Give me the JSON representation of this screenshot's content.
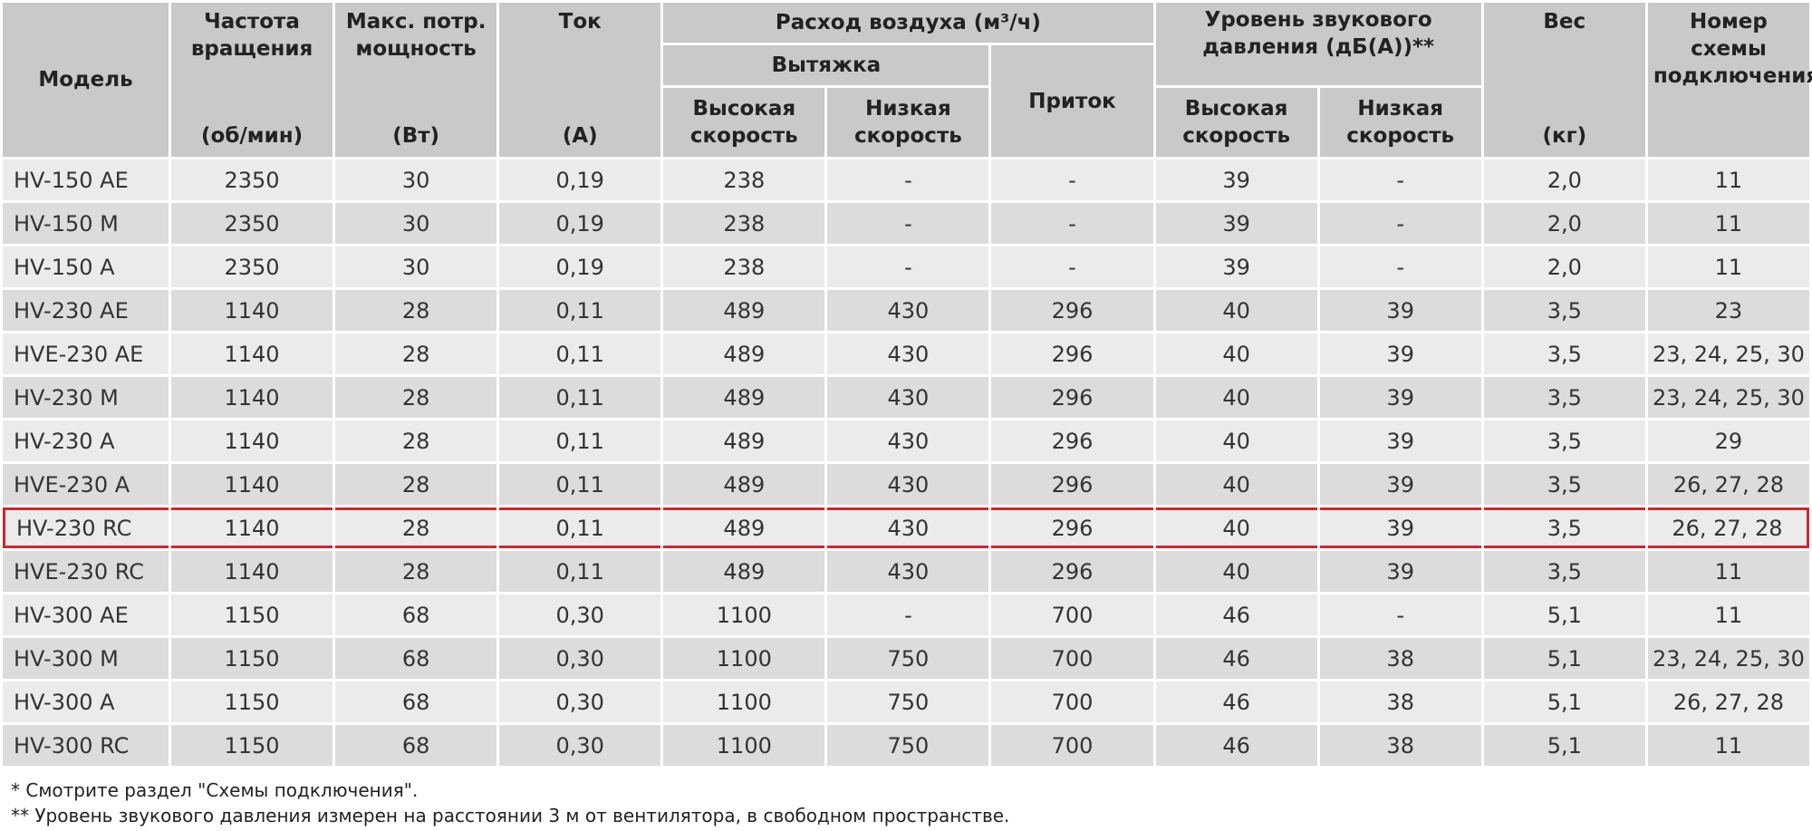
{
  "table": {
    "header": {
      "model": "Модель",
      "rpm": {
        "label": "Частота вращения",
        "unit": "(об/мин)"
      },
      "power": {
        "label": "Макс. потр. мощность",
        "unit": "(Вт)"
      },
      "current": {
        "label": "Ток",
        "unit": "(А)"
      },
      "airflow": {
        "label": "Расход воздуха (м³/ч)",
        "exhaust": "Вытяжка",
        "supply": "Приток",
        "high": "Высокая скорость",
        "low": "Низкая скорость"
      },
      "noise": {
        "label": "Уровень звукового давления (дБ(А))**",
        "high": "Высокая скорость",
        "low": "Низкая скорость"
      },
      "weight": {
        "label": "Вес",
        "unit": "(кг)"
      },
      "scheme": "Номер схемы подключения*"
    },
    "rows": [
      [
        "HV-150 AE",
        "2350",
        "30",
        "0,19",
        "238",
        "-",
        "-",
        "39",
        "-",
        "2,0",
        "11"
      ],
      [
        "HV-150 M",
        "2350",
        "30",
        "0,19",
        "238",
        "-",
        "-",
        "39",
        "-",
        "2,0",
        "11"
      ],
      [
        "HV-150 A",
        "2350",
        "30",
        "0,19",
        "238",
        "-",
        "-",
        "39",
        "-",
        "2,0",
        "11"
      ],
      [
        "HV-230 AE",
        "1140",
        "28",
        "0,11",
        "489",
        "430",
        "296",
        "40",
        "39",
        "3,5",
        "23"
      ],
      [
        "HVE-230 AE",
        "1140",
        "28",
        "0,11",
        "489",
        "430",
        "296",
        "40",
        "39",
        "3,5",
        "23, 24, 25, 30"
      ],
      [
        "HV-230 M",
        "1140",
        "28",
        "0,11",
        "489",
        "430",
        "296",
        "40",
        "39",
        "3,5",
        "23, 24, 25, 30"
      ],
      [
        "HV-230 A",
        "1140",
        "28",
        "0,11",
        "489",
        "430",
        "296",
        "40",
        "39",
        "3,5",
        "29"
      ],
      [
        "HVE-230 A",
        "1140",
        "28",
        "0,11",
        "489",
        "430",
        "296",
        "40",
        "39",
        "3,5",
        "26, 27, 28"
      ],
      [
        "HV-230 RC",
        "1140",
        "28",
        "0,11",
        "489",
        "430",
        "296",
        "40",
        "39",
        "3,5",
        "26, 27, 28"
      ],
      [
        "HVE-230 RC",
        "1140",
        "28",
        "0,11",
        "489",
        "430",
        "296",
        "40",
        "39",
        "3,5",
        "11"
      ],
      [
        "HV-300 AE",
        "1150",
        "68",
        "0,30",
        "1100",
        "-",
        "700",
        "46",
        "-",
        "5,1",
        "11"
      ],
      [
        "HV-300 M",
        "1150",
        "68",
        "0,30",
        "1100",
        "750",
        "700",
        "46",
        "38",
        "5,1",
        "23, 24, 25, 30"
      ],
      [
        "HV-300 A",
        "1150",
        "68",
        "0,30",
        "1100",
        "750",
        "700",
        "46",
        "38",
        "5,1",
        "26, 27, 28"
      ],
      [
        "HV-300 RC",
        "1150",
        "68",
        "0,30",
        "1100",
        "750",
        "700",
        "46",
        "38",
        "5,1",
        "11"
      ]
    ],
    "highlight_row": 8
  },
  "footnotes": [
    "* Смотрите раздел \"Схемы подключения\".",
    "** Уровень звукового давления измерен на расстоянии 3 м от вентилятора, в свободном пространстве."
  ]
}
